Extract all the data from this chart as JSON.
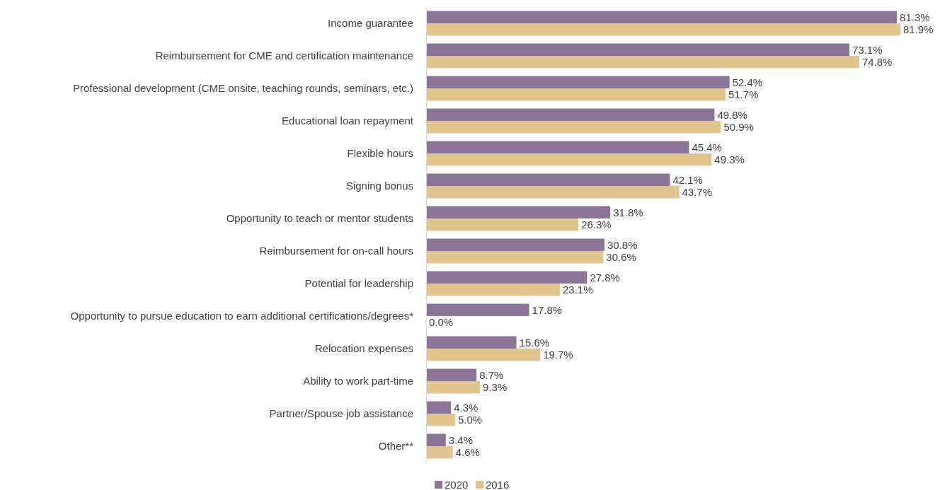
{
  "chart_data": {
    "type": "bar",
    "orientation": "horizontal",
    "legend": "bottom",
    "grid": false,
    "categories": [
      "Income guarantee",
      "Reimbursement for CME and certification maintenance",
      "Professional development (CME onsite, teaching rounds, seminars, etc.)",
      "Educational loan repayment",
      "Flexible hours",
      "Signing bonus",
      "Opportunity to teach or mentor students",
      "Reimbursement for on-call hours",
      "Potential for leadership",
      "Opportunity to pursue education to earn additional certifications/degrees*",
      "Relocation expenses",
      "Ability to work part-time",
      "Partner/Spouse job assistance",
      "Other**"
    ],
    "series": [
      {
        "name": "2020",
        "color": "#8c7596",
        "values": [
          81.3,
          73.1,
          52.4,
          49.8,
          45.4,
          42.1,
          31.8,
          30.8,
          27.8,
          17.8,
          15.6,
          8.7,
          4.3,
          3.4
        ],
        "value_labels": [
          "81.3%",
          "73.1%",
          "52.4%",
          "49.8%",
          "45.4%",
          "42.1%",
          "31.8%",
          "30.8%",
          "27.8%",
          "17.8%",
          "15.6%",
          "8.7%",
          "4.3%",
          "3.4%"
        ]
      },
      {
        "name": "2016",
        "color": "#e0c58e",
        "values": [
          81.9,
          74.8,
          51.7,
          50.9,
          49.3,
          43.7,
          26.3,
          30.6,
          23.1,
          0.0,
          19.7,
          9.3,
          5.0,
          4.6
        ],
        "value_labels": [
          "81.9%",
          "74.8%",
          "51.7%",
          "50.9%",
          "49.3%",
          "43.7%",
          "26.3%",
          "30.6%",
          "23.1%",
          "0.0%",
          "19.7%",
          "9.3%",
          "5.0%",
          "4.6%"
        ]
      }
    ]
  }
}
